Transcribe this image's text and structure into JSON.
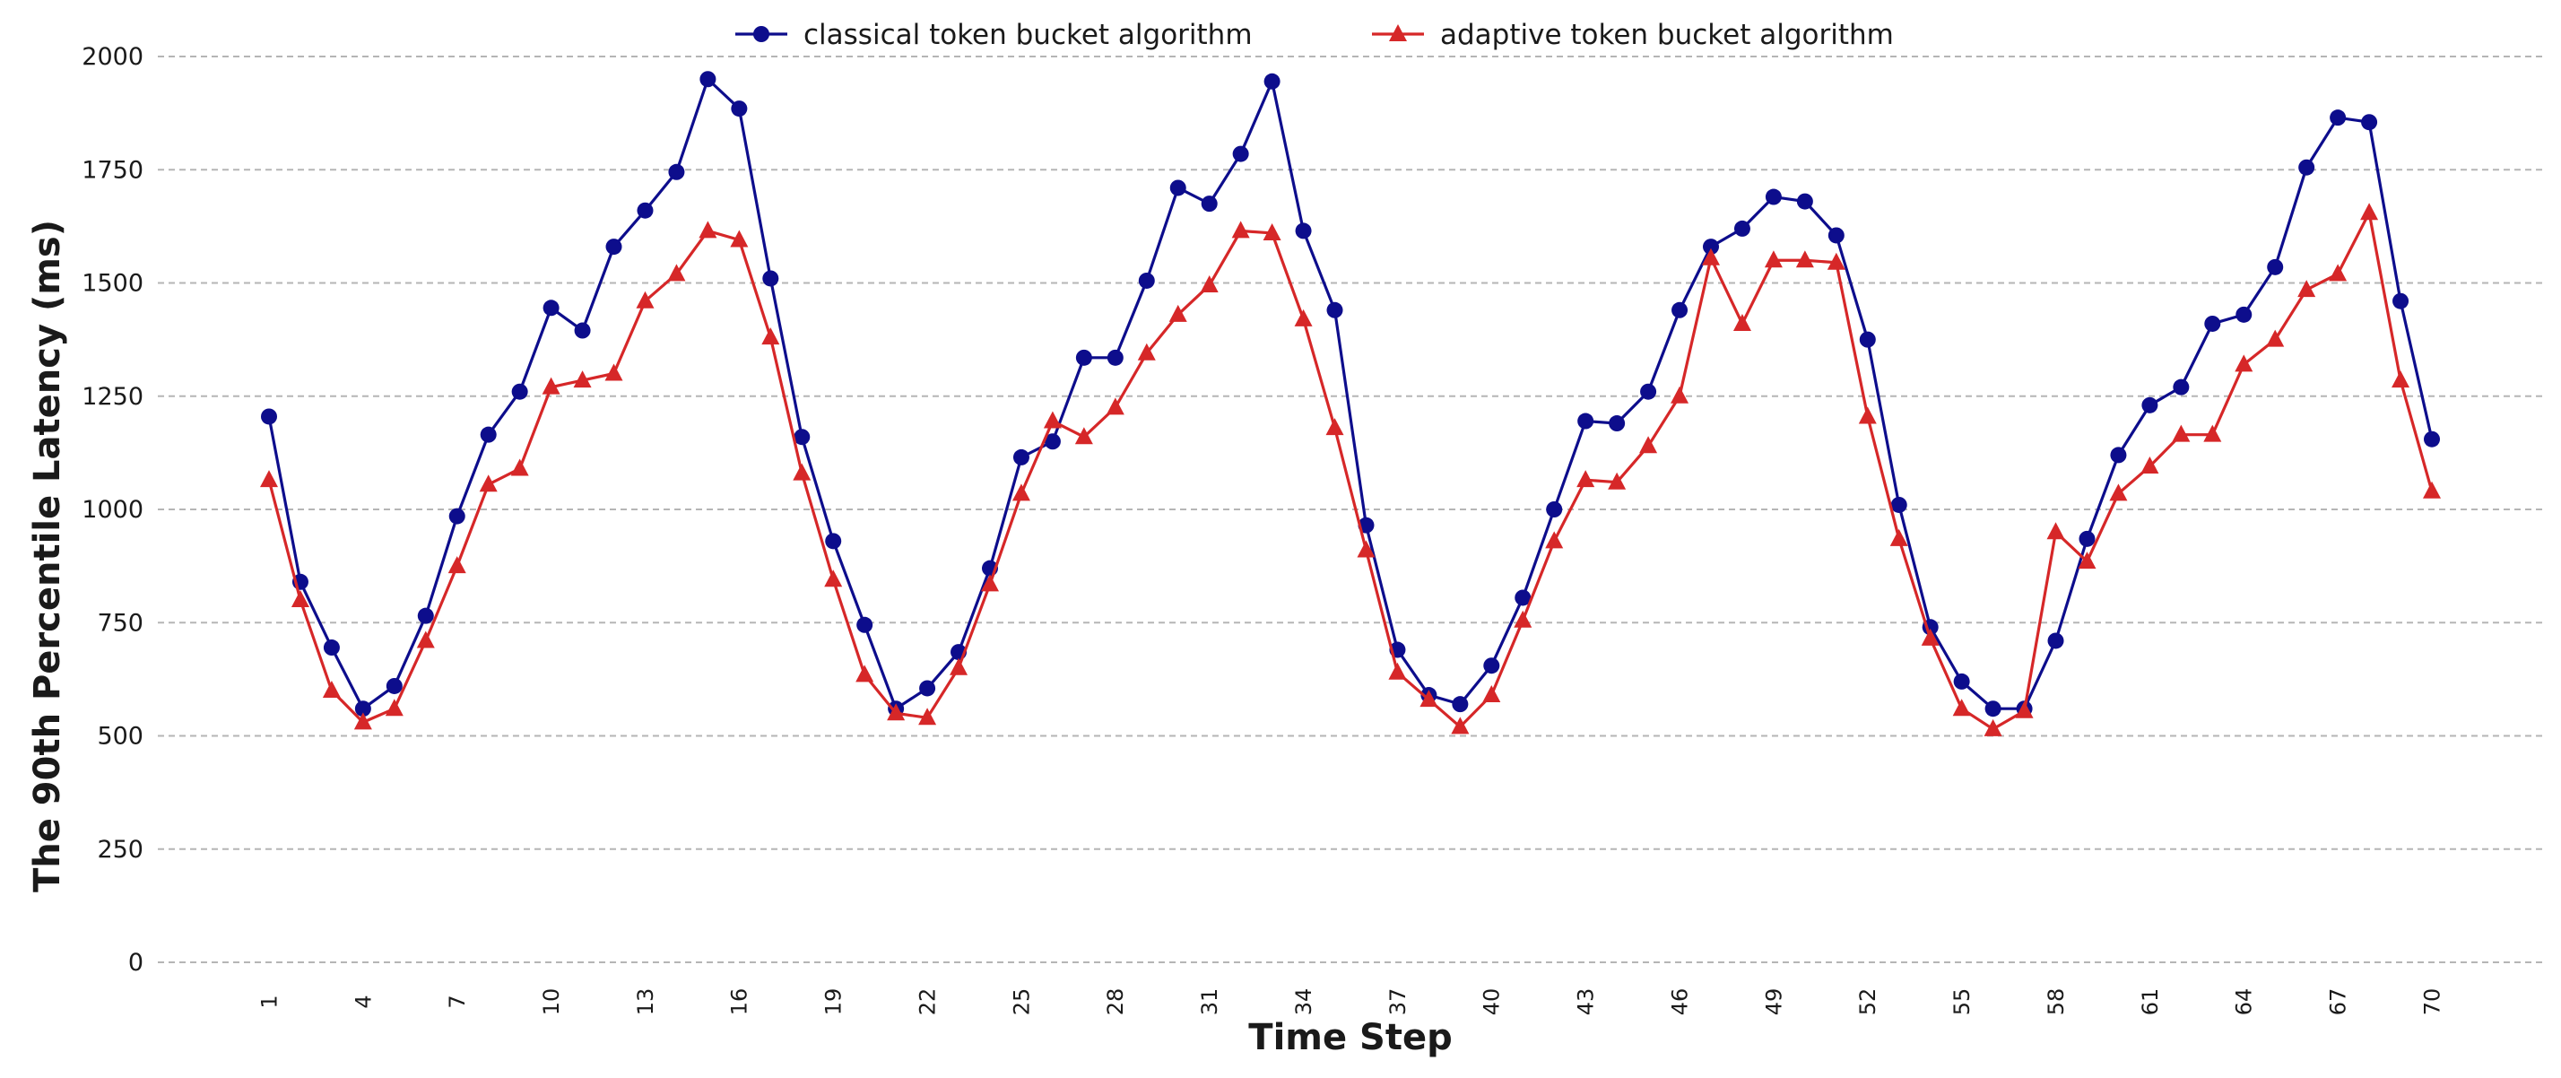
{
  "chart_data": {
    "type": "line",
    "title": "",
    "xlabel": "Time Step",
    "ylabel": "The 90th Percentile Latency (ms)",
    "xlim": [
      1,
      70
    ],
    "ylim": [
      0,
      2000
    ],
    "yticks": [
      0,
      250,
      500,
      750,
      1000,
      1250,
      1500,
      1750,
      2000
    ],
    "xticks": [
      1,
      4,
      7,
      10,
      13,
      16,
      19,
      22,
      25,
      28,
      31,
      34,
      37,
      40,
      43,
      46,
      49,
      52,
      55,
      58,
      61,
      64,
      67,
      70
    ],
    "grid": "horizontal dashed",
    "legend_position": "top-center",
    "x": [
      1,
      2,
      3,
      4,
      5,
      6,
      7,
      8,
      9,
      10,
      11,
      12,
      13,
      14,
      15,
      16,
      17,
      18,
      19,
      20,
      21,
      22,
      23,
      24,
      25,
      26,
      27,
      28,
      29,
      30,
      31,
      32,
      33,
      34,
      35,
      36,
      37,
      38,
      39,
      40,
      41,
      42,
      43,
      44,
      45,
      46,
      47,
      48,
      49,
      50,
      51,
      52,
      53,
      54,
      55,
      56,
      57,
      58,
      59,
      60,
      61,
      62,
      63,
      64,
      65,
      66,
      67,
      68,
      69,
      70
    ],
    "series": [
      {
        "name": "classical token bucket algorithm",
        "color": "#0d0d8c",
        "marker": "circle",
        "values": [
          1205,
          840,
          695,
          560,
          610,
          765,
          985,
          1165,
          1260,
          1445,
          1395,
          1580,
          1660,
          1745,
          1950,
          1885,
          1510,
          1160,
          930,
          745,
          560,
          605,
          685,
          870,
          1115,
          1150,
          1335,
          1335,
          1505,
          1710,
          1675,
          1785,
          1945,
          1615,
          1440,
          965,
          690,
          590,
          570,
          655,
          805,
          1000,
          1195,
          1190,
          1260,
          1440,
          1580,
          1620,
          1690,
          1680,
          1605,
          1375,
          1010,
          740,
          620,
          560,
          560,
          710,
          935,
          1120,
          1230,
          1270,
          1410,
          1430,
          1535,
          1755,
          1865,
          1855,
          1460,
          1155
        ]
      },
      {
        "name": "adaptive token bucket algorithm",
        "color": "#d62728",
        "marker": "triangle",
        "values": [
          1065,
          800,
          600,
          530,
          560,
          710,
          875,
          1055,
          1090,
          1270,
          1285,
          1300,
          1460,
          1520,
          1615,
          1595,
          1380,
          1080,
          845,
          635,
          550,
          540,
          650,
          835,
          1035,
          1195,
          1160,
          1225,
          1345,
          1430,
          1495,
          1615,
          1610,
          1420,
          1180,
          910,
          640,
          580,
          520,
          590,
          755,
          930,
          1065,
          1060,
          1140,
          1250,
          1555,
          1410,
          1550,
          1550,
          1545,
          1205,
          935,
          715,
          560,
          515,
          555,
          950,
          885,
          1035,
          1095,
          1165,
          1165,
          1320,
          1375,
          1485,
          1520,
          1655,
          1285,
          1040
        ]
      }
    ]
  }
}
